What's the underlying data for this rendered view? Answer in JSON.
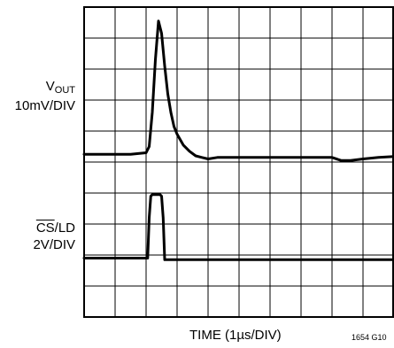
{
  "labels": {
    "vout_prefix": "V",
    "vout_sub": "OUT",
    "vout_scale": "10mV/DIV",
    "cs_over": "CS",
    "cs_rest": "/LD",
    "cs_scale": "2V/DIV",
    "x_label": "TIME (1µs/DIV)",
    "figure_id": "1654 G10"
  },
  "colors": {
    "grid": "#000000",
    "trace": "#000000",
    "background": "#ffffff"
  },
  "chart_data": {
    "type": "line",
    "grid": true,
    "x_divisions": 10,
    "y_divisions": 10,
    "xlim": [
      0,
      10
    ],
    "ylim": [
      0,
      10
    ],
    "xlabel": "TIME (1µs/DIV)",
    "series": [
      {
        "name": "VOUT",
        "x": [
          0,
          0.5,
          1,
          1.5,
          2,
          2.1,
          2.2,
          2.3,
          2.4,
          2.5,
          2.6,
          2.7,
          2.8,
          2.9,
          3.0,
          3.2,
          3.4,
          3.6,
          3.8,
          4.0,
          4.3,
          4.6,
          5,
          6,
          7,
          8,
          8.3,
          8.6,
          9,
          9.5,
          10
        ],
        "y": [
          5.25,
          5.25,
          5.25,
          5.25,
          5.3,
          5.5,
          6.6,
          8.3,
          9.55,
          9.15,
          8.1,
          7.2,
          6.6,
          6.15,
          5.9,
          5.55,
          5.35,
          5.2,
          5.15,
          5.1,
          5.15,
          5.15,
          5.15,
          5.15,
          5.15,
          5.15,
          5.05,
          5.05,
          5.1,
          5.15,
          5.18
        ]
      },
      {
        "name": "CS/LD",
        "x": [
          0,
          1,
          2,
          2.05,
          2.1,
          2.15,
          2.2,
          2.45,
          2.5,
          2.55,
          2.6,
          2.65,
          3,
          5,
          7,
          9,
          10
        ],
        "y": [
          1.9,
          1.9,
          1.9,
          1.9,
          3.2,
          3.9,
          3.95,
          3.95,
          3.9,
          3.2,
          1.85,
          1.85,
          1.85,
          1.85,
          1.85,
          1.85,
          1.85
        ]
      }
    ]
  }
}
